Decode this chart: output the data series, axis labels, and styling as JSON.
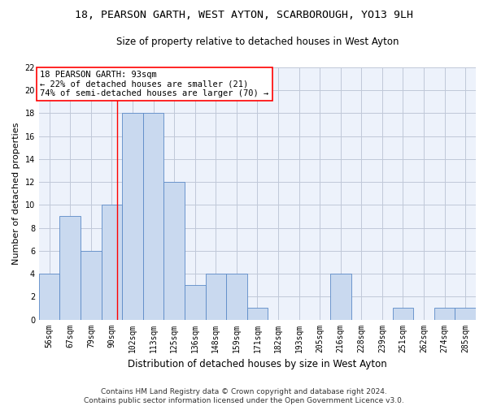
{
  "title": "18, PEARSON GARTH, WEST AYTON, SCARBOROUGH, YO13 9LH",
  "subtitle": "Size of property relative to detached houses in West Ayton",
  "xlabel": "Distribution of detached houses by size in West Ayton",
  "ylabel": "Number of detached properties",
  "footer": "Contains HM Land Registry data © Crown copyright and database right 2024.\nContains public sector information licensed under the Open Government Licence v3.0.",
  "bin_labels": [
    "56sqm",
    "67sqm",
    "79sqm",
    "90sqm",
    "102sqm",
    "113sqm",
    "125sqm",
    "136sqm",
    "148sqm",
    "159sqm",
    "171sqm",
    "182sqm",
    "193sqm",
    "205sqm",
    "216sqm",
    "228sqm",
    "239sqm",
    "251sqm",
    "262sqm",
    "274sqm",
    "285sqm"
  ],
  "bar_values": [
    4,
    9,
    6,
    10,
    18,
    18,
    12,
    3,
    4,
    4,
    1,
    0,
    0,
    0,
    4,
    0,
    0,
    1,
    0,
    1,
    1
  ],
  "bar_color": "#c9d9ef",
  "bar_edgecolor": "#5b8ac7",
  "annotation_text": "18 PEARSON GARTH: 93sqm\n← 22% of detached houses are smaller (21)\n74% of semi-detached houses are larger (70) →",
  "ylim": [
    0,
    22
  ],
  "yticks": [
    0,
    2,
    4,
    6,
    8,
    10,
    12,
    14,
    16,
    18,
    20,
    22
  ],
  "bg_color": "#ffffff",
  "grid_color": "#c0c8d8",
  "title_fontsize": 9.5,
  "subtitle_fontsize": 8.5,
  "xlabel_fontsize": 8.5,
  "ylabel_fontsize": 8,
  "tick_fontsize": 7,
  "annotation_fontsize": 7.5,
  "footer_fontsize": 6.5
}
